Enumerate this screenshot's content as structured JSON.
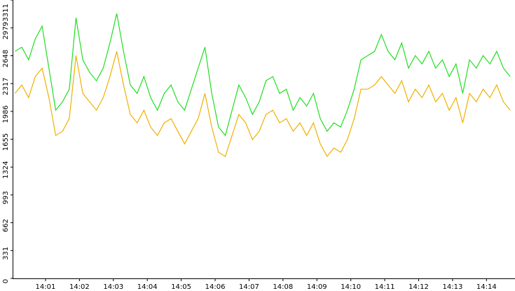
{
  "chart_data": {
    "type": "line",
    "x": [
      0.1,
      0.3,
      0.5,
      0.7,
      0.9,
      1.1,
      1.3,
      1.5,
      1.7,
      1.9,
      2.1,
      2.3,
      2.5,
      2.7,
      2.9,
      3.1,
      3.3,
      3.5,
      3.7,
      3.9,
      4.1,
      4.3,
      4.5,
      4.7,
      4.9,
      5.1,
      5.3,
      5.5,
      5.7,
      5.9,
      6.1,
      6.3,
      6.5,
      6.7,
      6.9,
      7.1,
      7.3,
      7.5,
      7.7,
      7.9,
      8.1,
      8.3,
      8.5,
      8.7,
      8.9,
      9.1,
      9.3,
      9.5,
      9.7,
      9.9,
      10.1,
      10.3,
      10.5,
      10.7,
      10.9,
      11.1,
      11.3,
      11.5,
      11.7,
      11.9,
      12.1,
      12.3,
      12.5,
      12.7,
      12.9,
      13.1,
      13.3,
      13.5,
      13.7,
      13.9,
      14.1,
      14.3,
      14.5,
      14.7
    ],
    "series": [
      {
        "color": "#22dd22",
        "values": [
          2700,
          2750,
          2600,
          2850,
          3000,
          2500,
          2000,
          2100,
          2250,
          3100,
          2600,
          2450,
          2350,
          2500,
          2800,
          3150,
          2700,
          2300,
          2200,
          2400,
          2150,
          2000,
          2200,
          2300,
          2100,
          2000,
          2250,
          2500,
          2750,
          2200,
          1800,
          1700,
          2000,
          2300,
          2150,
          1950,
          2100,
          2350,
          2400,
          2200,
          2250,
          2000,
          2150,
          2050,
          2200,
          1900,
          1750,
          1850,
          1800,
          2000,
          2250,
          2600,
          2650,
          2700,
          2900,
          2700,
          2600,
          2800,
          2500,
          2650,
          2550,
          2700,
          2500,
          2600,
          2400,
          2550,
          2200,
          2600,
          2500,
          2650,
          2550,
          2700,
          2500,
          2400
        ]
      },
      {
        "color": "#f0b000",
        "values": [
          2200,
          2300,
          2150,
          2400,
          2500,
          2150,
          1700,
          1750,
          1900,
          2650,
          2200,
          2100,
          2000,
          2150,
          2400,
          2700,
          2300,
          1950,
          1850,
          2000,
          1800,
          1700,
          1850,
          1900,
          1750,
          1600,
          1750,
          1900,
          2200,
          1800,
          1500,
          1450,
          1700,
          1950,
          1850,
          1650,
          1750,
          1950,
          2000,
          1850,
          1900,
          1750,
          1850,
          1700,
          1850,
          1600,
          1450,
          1550,
          1500,
          1650,
          1900,
          2250,
          2250,
          2300,
          2400,
          2300,
          2200,
          2350,
          2100,
          2250,
          2150,
          2300,
          2100,
          2200,
          2000,
          2150,
          1850,
          2200,
          2100,
          2250,
          2150,
          2300,
          2100,
          2000
        ]
      }
    ],
    "xlim": [
      0.03,
      14.84
    ],
    "xticks": [
      {
        "value": 1,
        "label": "14:01"
      },
      {
        "value": 2,
        "label": "14:02"
      },
      {
        "value": 3,
        "label": "14:03"
      },
      {
        "value": 4,
        "label": "14:04"
      },
      {
        "value": 5,
        "label": "14:05"
      },
      {
        "value": 6,
        "label": "14:06"
      },
      {
        "value": 7,
        "label": "14:07"
      },
      {
        "value": 8,
        "label": "14:08"
      },
      {
        "value": 9,
        "label": "14:09"
      },
      {
        "value": 10,
        "label": "14:10"
      },
      {
        "value": 11,
        "label": "14:11"
      },
      {
        "value": 12,
        "label": "14:12"
      },
      {
        "value": 13,
        "label": "14:13"
      },
      {
        "value": 14,
        "label": "14:14"
      }
    ],
    "ylim": [
      0,
      3311
    ],
    "yticks": [
      0,
      331,
      662,
      993,
      1324,
      1655,
      1986,
      2317,
      2648,
      2979,
      3311
    ]
  }
}
